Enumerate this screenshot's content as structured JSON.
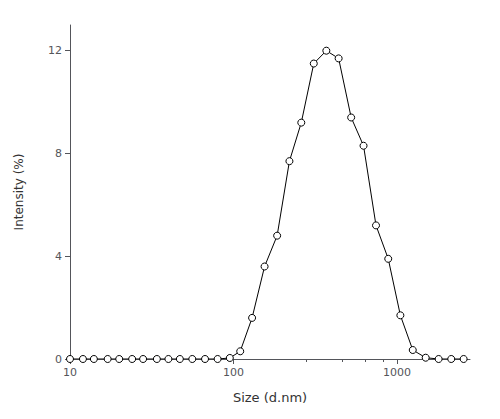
{
  "chart_data": {
    "type": "line",
    "xlabel": "Size (d.nm)",
    "ylabel": "Intensity (%)",
    "x": [
      10,
      12,
      14,
      17,
      20,
      24,
      28,
      34,
      40,
      47,
      56,
      67,
      80,
      95,
      110,
      130,
      155,
      185,
      220,
      260,
      310,
      370,
      440,
      525,
      625,
      745,
      885,
      1050,
      1250,
      1500,
      1800,
      2150,
      2560
    ],
    "values": [
      0,
      0,
      0,
      0,
      0,
      0,
      0,
      0,
      0,
      0,
      0,
      0,
      0,
      0.04,
      0.3,
      1.6,
      3.6,
      4.8,
      7.7,
      9.2,
      11.5,
      12.0,
      11.7,
      9.4,
      8.3,
      5.2,
      3.9,
      1.7,
      0.35,
      0.05,
      0,
      0,
      0
    ],
    "xlim": [
      10,
      2800
    ],
    "ylim": [
      0,
      13
    ],
    "xticks": [
      10,
      100,
      1000
    ],
    "yticks": [
      0,
      4,
      8,
      12
    ],
    "log": "x",
    "grid": false,
    "color": "#000000",
    "marker": "circle"
  }
}
